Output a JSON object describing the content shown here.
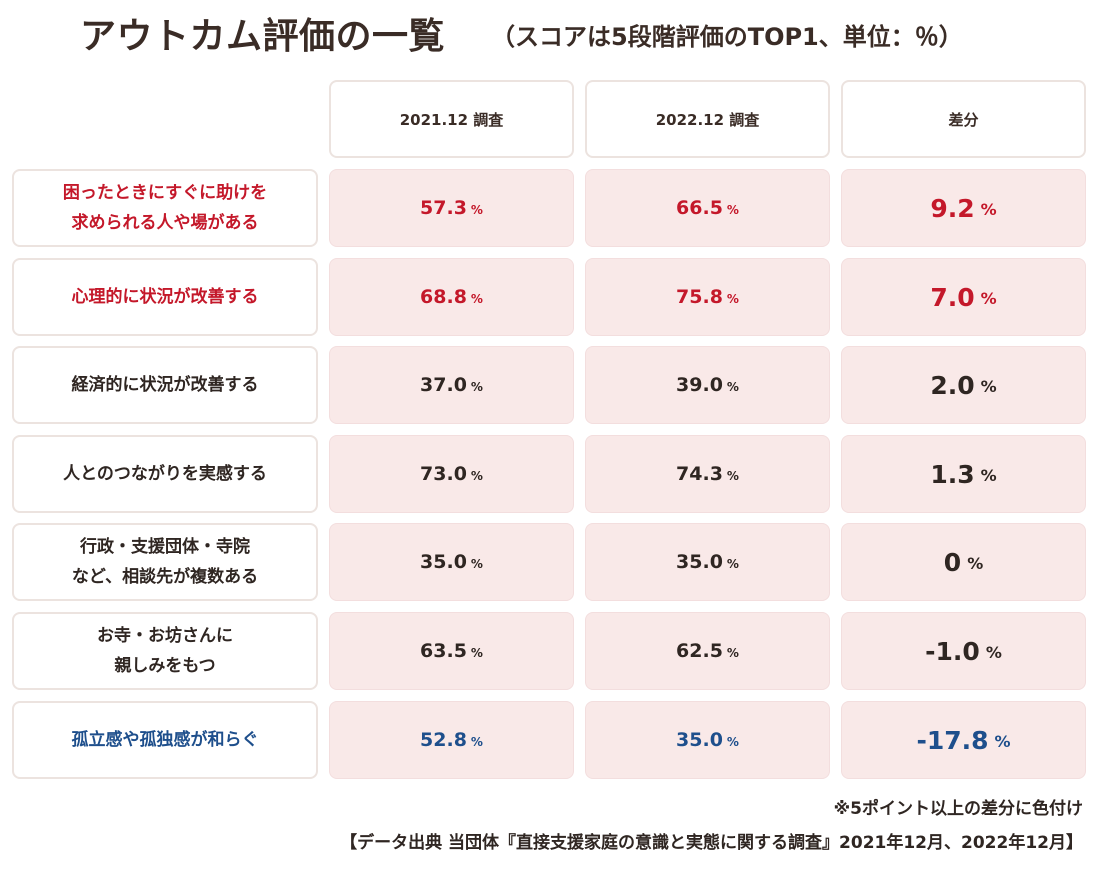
{
  "title": "アウトカム評価の一覧",
  "subtitle": "（スコアは5段階評価のTOP1、単位：％）",
  "headers": [
    "2021.12 調査",
    "2022.12 調査",
    "差分"
  ],
  "unit": "%",
  "colors": {
    "highlight_positive": "#c4182a",
    "highlight_negative": "#1e4f8c",
    "cell_fill": "#f9e9e8",
    "text": "#2f2622"
  },
  "rows": [
    {
      "label": "困ったときにすぐに助けを\n求められる人や場がある",
      "v2021": "57.3",
      "v2022": "66.5",
      "diff": "9.2",
      "tone": "red"
    },
    {
      "label": "心理的に状況が改善する",
      "v2021": "68.8",
      "v2022": "75.8",
      "diff": "7.0",
      "tone": "red"
    },
    {
      "label": "経済的に状況が改善する",
      "v2021": "37.0",
      "v2022": "39.0",
      "diff": "2.0",
      "tone": "none"
    },
    {
      "label": "人とのつながりを実感する",
      "v2021": "73.0",
      "v2022": "74.3",
      "diff": "1.3",
      "tone": "none"
    },
    {
      "label": "行政・支援団体・寺院\nなど、相談先が複数ある",
      "v2021": "35.0",
      "v2022": "35.0",
      "diff": "0",
      "tone": "none"
    },
    {
      "label": "お寺・お坊さんに\n親しみをもつ",
      "v2021": "63.5",
      "v2022": "62.5",
      "diff": "-1.0",
      "tone": "none"
    },
    {
      "label": "孤立感や孤独感が和らぐ",
      "v2021": "52.8",
      "v2022": "35.0",
      "diff": "-17.8",
      "tone": "blue"
    }
  ],
  "footer": {
    "note": "※5ポイント以上の差分に色付け",
    "source": "【データ出典 当団体『直接支援家庭の意識と実態に関する調査』2021年12月、2022年12月】"
  },
  "chart_data": {
    "type": "table",
    "title": "アウトカム評価の一覧",
    "subtitle": "（スコアは5段階評価のTOP1、単位：％）",
    "columns": [
      "2021.12 調査",
      "2022.12 調査",
      "差分"
    ],
    "rows": [
      {
        "label": "困ったときにすぐに助けを求められる人や場がある",
        "values": [
          57.3,
          66.5,
          9.2
        ]
      },
      {
        "label": "心理的に状況が改善する",
        "values": [
          68.8,
          75.8,
          7.0
        ]
      },
      {
        "label": "経済的に状況が改善する",
        "values": [
          37.0,
          39.0,
          2.0
        ]
      },
      {
        "label": "人とのつながりを実感する",
        "values": [
          73.0,
          74.3,
          1.3
        ]
      },
      {
        "label": "行政・支援団体・寺院など、相談先が複数ある",
        "values": [
          35.0,
          35.0,
          0
        ]
      },
      {
        "label": "お寺・お坊さんに親しみをもつ",
        "values": [
          63.5,
          62.5,
          -1.0
        ]
      },
      {
        "label": "孤立感や孤独感が和らぐ",
        "values": [
          52.8,
          35.0,
          -17.8
        ]
      }
    ]
  }
}
